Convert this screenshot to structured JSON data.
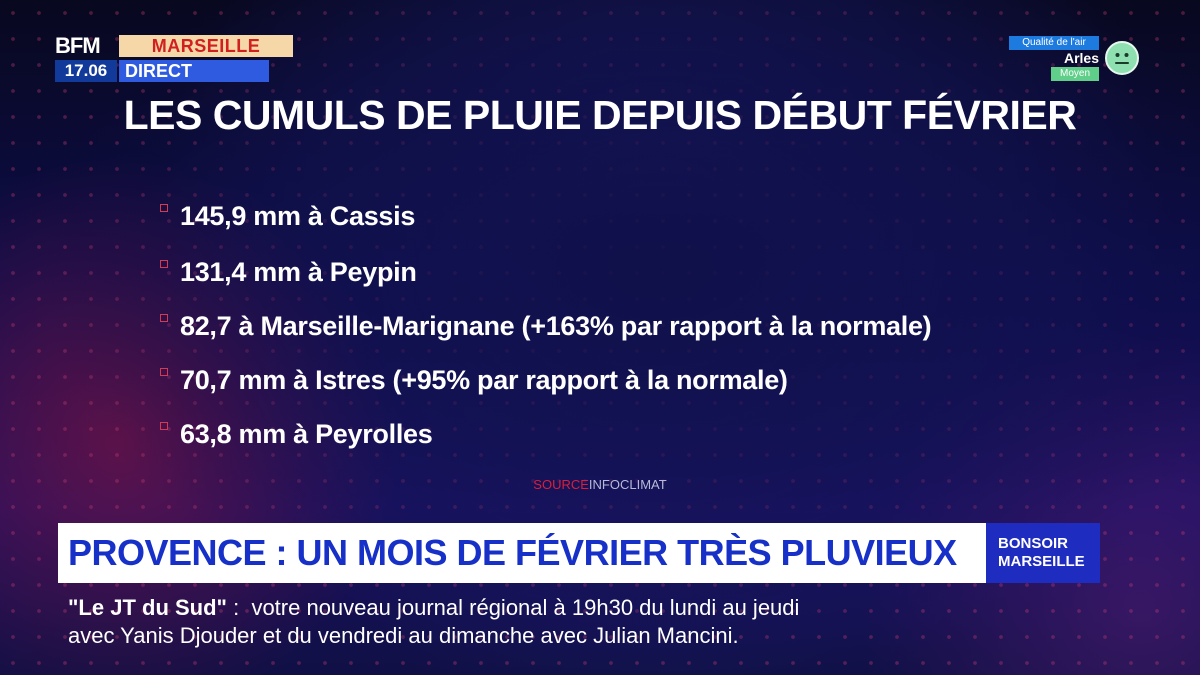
{
  "broadcast": {
    "channel": "BFM",
    "city": "MARSEILLE",
    "time": "17.06",
    "status": "DIRECT"
  },
  "air_quality": {
    "label": "Qualité de l'air",
    "city": "Arles",
    "level": "Moyen",
    "face_color": "#8ee0b0"
  },
  "title": "LES CUMULS DE PLUIE DEPUIS DÉBUT FÉVRIER",
  "items": [
    "145,9 mm à Cassis",
    "131,4 mm à Peypin",
    "82,7 à Marseille-Marignane (+163% par rapport à la normale)",
    "70,7 mm à Istres (+95% par rapport à la normale)",
    "63,8 mm à Peyrolles"
  ],
  "source": {
    "label": "SOURCE",
    "name": "INFOCLIMAT"
  },
  "headline": "PROVENCE : UN MOIS DE FÉVRIER TRÈS PLUVIEUX",
  "show": {
    "line1": "BONSOIR",
    "line2": "MARSEILLE"
  },
  "ticker": {
    "program": "\"Le JT du Sud\"",
    "separator": " :  ",
    "line1_rest": "votre nouveau journal régional à 19h30 du lundi au jeudi",
    "line2": "avec Yanis Djouder et du vendredi au dimanche avec Julian Mancini."
  },
  "colors": {
    "accent_red": "#d8203a",
    "headline_blue": "#1630c8",
    "show_blue": "#1f2cc0"
  }
}
